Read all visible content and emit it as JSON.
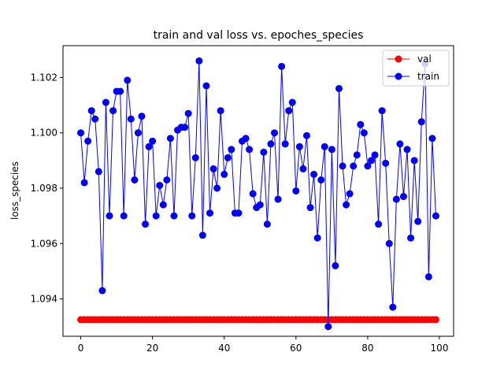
{
  "chart_data": {
    "type": "line",
    "title": "train and val loss vs. epoches_species",
    "xlabel": "",
    "ylabel": "loss_species",
    "xlim": [
      -4.95,
      103.95
    ],
    "ylim": [
      1.09265,
      1.10315
    ],
    "xticks": [
      0,
      20,
      40,
      60,
      80,
      100
    ],
    "yticks": [
      1.094,
      1.096,
      1.098,
      1.1,
      1.102
    ],
    "yticks_labels": [
      "1.094",
      "1.096",
      "1.098",
      "1.100",
      "1.102"
    ],
    "xticks_labels": [
      "0",
      "20",
      "40",
      "60",
      "80",
      "100"
    ],
    "grid": false,
    "legend_position": "top-right",
    "x": [
      0,
      1,
      2,
      3,
      4,
      5,
      6,
      7,
      8,
      9,
      10,
      11,
      12,
      13,
      14,
      15,
      16,
      17,
      18,
      19,
      20,
      21,
      22,
      23,
      24,
      25,
      26,
      27,
      28,
      29,
      30,
      31,
      32,
      33,
      34,
      35,
      36,
      37,
      38,
      39,
      40,
      41,
      42,
      43,
      44,
      45,
      46,
      47,
      48,
      49,
      50,
      51,
      52,
      53,
      54,
      55,
      56,
      57,
      58,
      59,
      60,
      61,
      62,
      63,
      64,
      65,
      66,
      67,
      68,
      69,
      70,
      71,
      72,
      73,
      74,
      75,
      76,
      77,
      78,
      79,
      80,
      81,
      82,
      83,
      84,
      85,
      86,
      87,
      88,
      89,
      90,
      91,
      92,
      93,
      94,
      95,
      96,
      97,
      98,
      99
    ],
    "series": [
      {
        "name": "val",
        "color": "#ff0000",
        "values": [
          1.09325,
          1.09325,
          1.09325,
          1.09325,
          1.09325,
          1.09325,
          1.09325,
          1.09325,
          1.09325,
          1.09325,
          1.09325,
          1.09325,
          1.09325,
          1.09325,
          1.09325,
          1.09325,
          1.09325,
          1.09325,
          1.09325,
          1.09325,
          1.09325,
          1.09325,
          1.09325,
          1.09325,
          1.09325,
          1.09325,
          1.09325,
          1.09325,
          1.09325,
          1.09325,
          1.09325,
          1.09325,
          1.09325,
          1.09325,
          1.09325,
          1.09325,
          1.09325,
          1.09325,
          1.09325,
          1.09325,
          1.09325,
          1.09325,
          1.09325,
          1.09325,
          1.09325,
          1.09325,
          1.09325,
          1.09325,
          1.09325,
          1.09325,
          1.09325,
          1.09325,
          1.09325,
          1.09325,
          1.09325,
          1.09325,
          1.09325,
          1.09325,
          1.09325,
          1.09325,
          1.09325,
          1.09325,
          1.09325,
          1.09325,
          1.09325,
          1.09325,
          1.09325,
          1.09325,
          1.09325,
          1.09325,
          1.09325,
          1.09325,
          1.09325,
          1.09325,
          1.09325,
          1.09325,
          1.09325,
          1.09325,
          1.09325,
          1.09325,
          1.09325,
          1.09325,
          1.09325,
          1.09325,
          1.09325,
          1.09325,
          1.09325,
          1.09325,
          1.09325,
          1.09325,
          1.09325,
          1.09325,
          1.09325,
          1.09325,
          1.09325,
          1.09325,
          1.09325,
          1.09325,
          1.09325,
          1.09325
        ]
      },
      {
        "name": "train",
        "color": "#0000ff",
        "values": [
          1.1,
          1.0982,
          1.0997,
          1.1008,
          1.1005,
          1.0986,
          1.0943,
          1.1011,
          1.097,
          1.1008,
          1.1015,
          1.1015,
          1.097,
          1.1019,
          1.1005,
          1.0983,
          1.1,
          1.1006,
          1.0967,
          1.0995,
          1.0997,
          1.097,
          1.0981,
          1.0974,
          1.0983,
          1.0998,
          1.097,
          1.1001,
          1.1002,
          1.1002,
          1.1007,
          1.097,
          1.0991,
          1.1026,
          1.0963,
          1.1017,
          1.0971,
          1.0987,
          1.098,
          1.1008,
          1.0985,
          1.0991,
          1.0994,
          1.0971,
          1.0971,
          1.0997,
          1.0998,
          1.0994,
          1.0978,
          1.0973,
          1.0974,
          1.0993,
          1.0967,
          1.0996,
          1.1,
          1.0976,
          1.1024,
          1.0996,
          1.1008,
          1.1011,
          1.0979,
          1.0995,
          1.0987,
          1.0999,
          1.0973,
          1.0985,
          1.0962,
          1.0983,
          1.0995,
          1.093,
          1.0994,
          1.0952,
          1.1016,
          1.0988,
          1.0974,
          1.0978,
          1.0988,
          1.0992,
          1.1003,
          1.1,
          1.0988,
          1.099,
          1.0992,
          1.0967,
          1.1008,
          1.0989,
          1.096,
          1.0937,
          1.0976,
          1.0996,
          1.0977,
          1.0994,
          1.0962,
          1.099,
          1.0968,
          1.1004,
          1.1025,
          1.0948,
          1.0998,
          1.097
        ]
      }
    ]
  }
}
